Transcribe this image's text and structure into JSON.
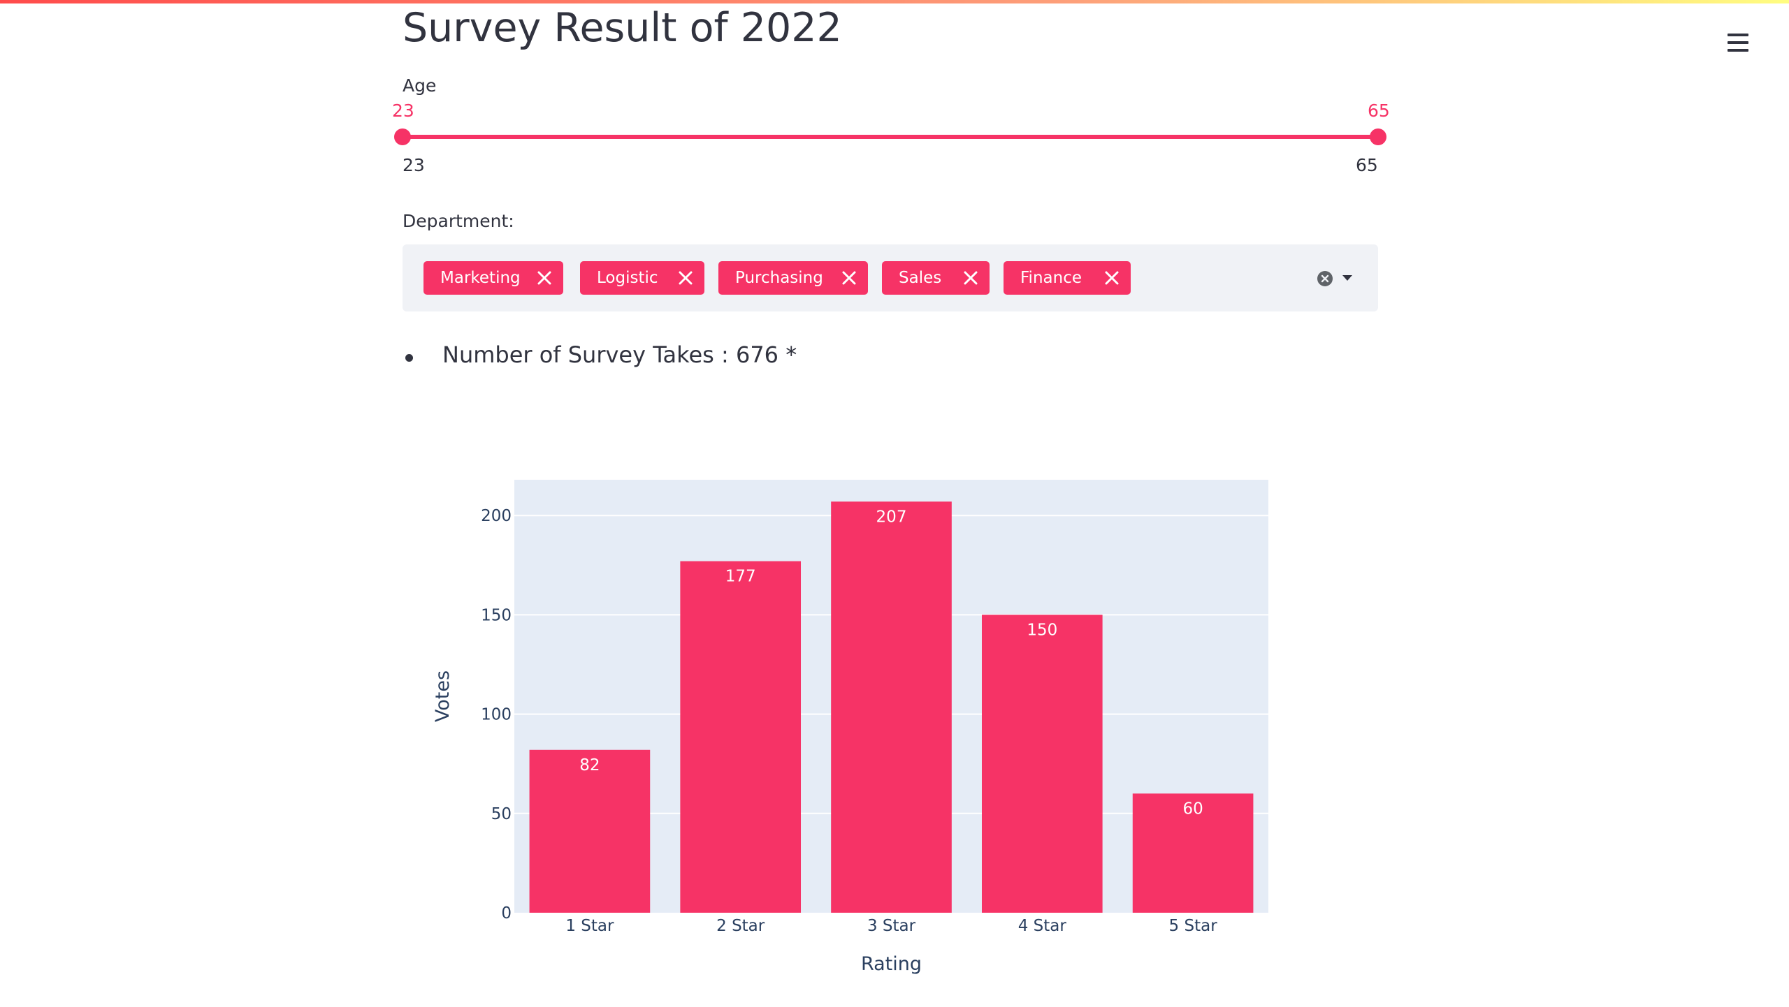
{
  "app": {
    "title": "Survey Result of 2022",
    "accent_color": "#f63366",
    "menu_icon": "hamburger-menu-icon"
  },
  "age_slider": {
    "label": "Age",
    "min": 23,
    "max": 65,
    "value_low": 23,
    "value_high": 65,
    "min_label": "23",
    "max_label": "65",
    "low_label": "23",
    "high_label": "65"
  },
  "department": {
    "label": "Department:",
    "selected": [
      "Marketing",
      "Logistic",
      "Purchasing",
      "Sales",
      "Finance"
    ],
    "clear_icon": "clear-all-icon",
    "dropdown_icon": "caret-down-icon"
  },
  "summary": {
    "text": "Number of Survey Takes : 676 *"
  },
  "chart_data": {
    "type": "bar",
    "categories": [
      "1 Star",
      "2 Star",
      "3 Star",
      "4 Star",
      "5 Star"
    ],
    "values": [
      82,
      177,
      207,
      150,
      60
    ],
    "xlabel": "Rating",
    "ylabel": "Votes",
    "ylim": [
      0,
      218
    ],
    "yticks": [
      0,
      50,
      100,
      150,
      200
    ],
    "bar_color": "#f63366",
    "plot_background": "#e5ecf6",
    "data_labels": true,
    "grid": true
  }
}
